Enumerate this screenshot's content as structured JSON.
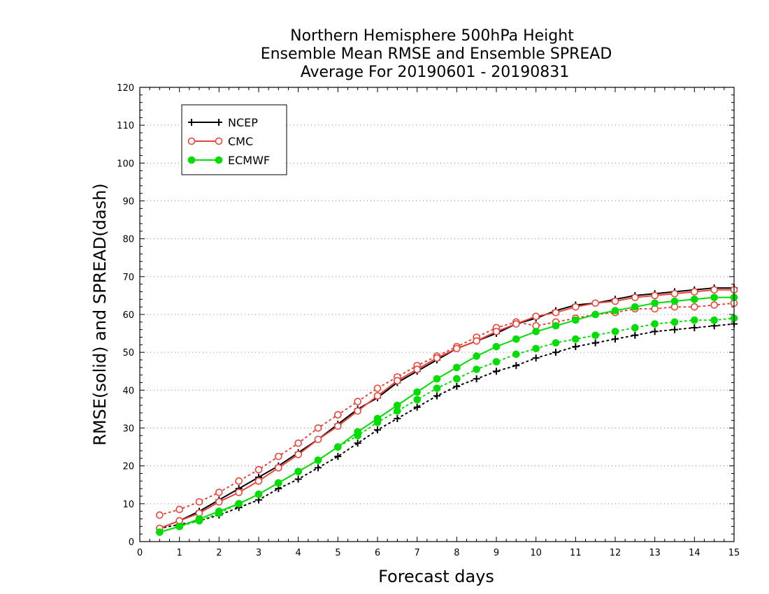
{
  "chart_data": {
    "type": "line",
    "title_lines": [
      "Northern Hemisphere 500hPa Height",
      "Ensemble Mean RMSE and Ensemble SPREAD",
      "Average For 20190601 - 20190831"
    ],
    "xlabel": "Forecast days",
    "ylabel": "RMSE(solid) and SPREAD(dash)",
    "xlim": [
      0,
      15
    ],
    "ylim": [
      0,
      120
    ],
    "x_ticks": [
      "0",
      "1",
      "2",
      "3",
      "4",
      "5",
      "6",
      "7",
      "8",
      "9",
      "10",
      "11",
      "12",
      "13",
      "14",
      "15"
    ],
    "y_ticks": [
      "0",
      "10",
      "20",
      "30",
      "40",
      "50",
      "60",
      "70",
      "80",
      "90",
      "100",
      "110",
      "120"
    ],
    "grid": "horizontal dotted",
    "legend_position": "top-left",
    "x": [
      0.5,
      1,
      1.5,
      2,
      2.5,
      3,
      3.5,
      4,
      4.5,
      5,
      5.5,
      6,
      6.5,
      7,
      7.5,
      8,
      8.5,
      9,
      9.5,
      10,
      10.5,
      11,
      11.5,
      12,
      12.5,
      13,
      13.5,
      14,
      14.5,
      15
    ],
    "series": [
      {
        "name": "NCEP",
        "color": "#000000",
        "marker": "plus",
        "rmse": [
          3.5,
          5.5,
          8,
          11,
          14,
          17,
          20,
          23.5,
          27,
          31,
          35,
          38,
          42,
          45,
          48,
          51,
          53,
          55,
          57.5,
          59,
          61,
          62.5,
          63,
          64,
          65,
          65.5,
          66,
          66.5,
          67,
          67
        ],
        "spread": [
          3.5,
          4.5,
          5.5,
          7,
          9,
          11,
          14,
          16.5,
          19.5,
          22.5,
          26,
          29.5,
          32.5,
          35.5,
          38.5,
          41,
          43,
          45,
          46.5,
          48.5,
          50,
          51.5,
          52.5,
          53.5,
          54.5,
          55.5,
          56,
          56.5,
          57,
          57.5
        ]
      },
      {
        "name": "CMC",
        "color": "#e8443a",
        "marker": "open-circle",
        "rmse": [
          3.5,
          5.5,
          7.5,
          10.5,
          13,
          16,
          19.5,
          23,
          27,
          30.5,
          34.5,
          38.5,
          42.5,
          45.5,
          48.5,
          51,
          53,
          55.5,
          57.5,
          59.5,
          60.5,
          62,
          63,
          63.5,
          64.5,
          65,
          65.5,
          66,
          66.5,
          66.5
        ],
        "spread": [
          7,
          8.5,
          10.5,
          13,
          16,
          19,
          22.5,
          26,
          30,
          33.5,
          37,
          40.5,
          43.5,
          46.5,
          49,
          51.5,
          54,
          56.5,
          58,
          57,
          58,
          59,
          60,
          60.5,
          61.5,
          61.5,
          62,
          62,
          62.5,
          63
        ]
      },
      {
        "name": "ECMWF",
        "color": "#00dd00",
        "marker": "filled-circle",
        "rmse": [
          2.5,
          4,
          6,
          8,
          10,
          12.5,
          15.5,
          18.5,
          21.5,
          25,
          29,
          32.5,
          36,
          39.5,
          43,
          46,
          49,
          51.5,
          53.5,
          55.5,
          57,
          58.5,
          60,
          61,
          62,
          63,
          63.5,
          64,
          64.5,
          64.5
        ],
        "spread": [
          2.5,
          4,
          5.5,
          7.5,
          10,
          12.5,
          15.5,
          18.5,
          21.5,
          25,
          28,
          31.5,
          34.5,
          37.5,
          40.5,
          43,
          45.5,
          47.5,
          49.5,
          51,
          52.5,
          53.5,
          54.5,
          55.5,
          56.5,
          57.5,
          58,
          58.5,
          58.5,
          59
        ]
      }
    ]
  }
}
